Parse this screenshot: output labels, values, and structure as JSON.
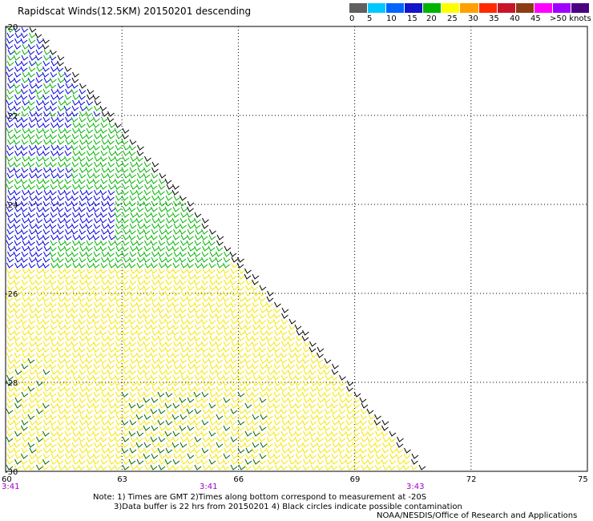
{
  "title": "Rapidscat Winds(12.5KM) 20150201 descending",
  "legend": {
    "labels": [
      "0",
      "5",
      "10",
      "15",
      "20",
      "25",
      "30",
      "35",
      "40",
      "45",
      ">50 knots"
    ],
    "colors": [
      "#606060",
      "#00c8ff",
      "#0064ff",
      "#1414c8",
      "#00b400",
      "#ffff00",
      "#ffa000",
      "#ff2a00",
      "#c81428",
      "#8c3c14",
      "#ff00ff",
      "#a000ff",
      "#4b0082"
    ]
  },
  "map": {
    "lat_labels": [
      "-20",
      "-22",
      "-24",
      "-26",
      "-28",
      "-30"
    ],
    "lon_labels": [
      "60",
      "63",
      "66",
      "69",
      "72",
      "75"
    ],
    "time_labels": [
      "3:41",
      "3:41",
      "3:43"
    ],
    "time_color": "#a000c8",
    "barb_colors": {
      "blue": "#0000dc",
      "green": "#00b400",
      "dark_green": "#006400",
      "yellow": "#f5e600",
      "black": "#000000"
    }
  },
  "notes": {
    "line1": "Note: 1) Times are GMT 2)Times along bottom correspond to measurement at -20S",
    "line2": "3)Data buffer is 22 hrs from 20150201 4) Black circles indicate possible contamination",
    "line3": "NOAA/NESDIS/Office of Research and Applications"
  }
}
